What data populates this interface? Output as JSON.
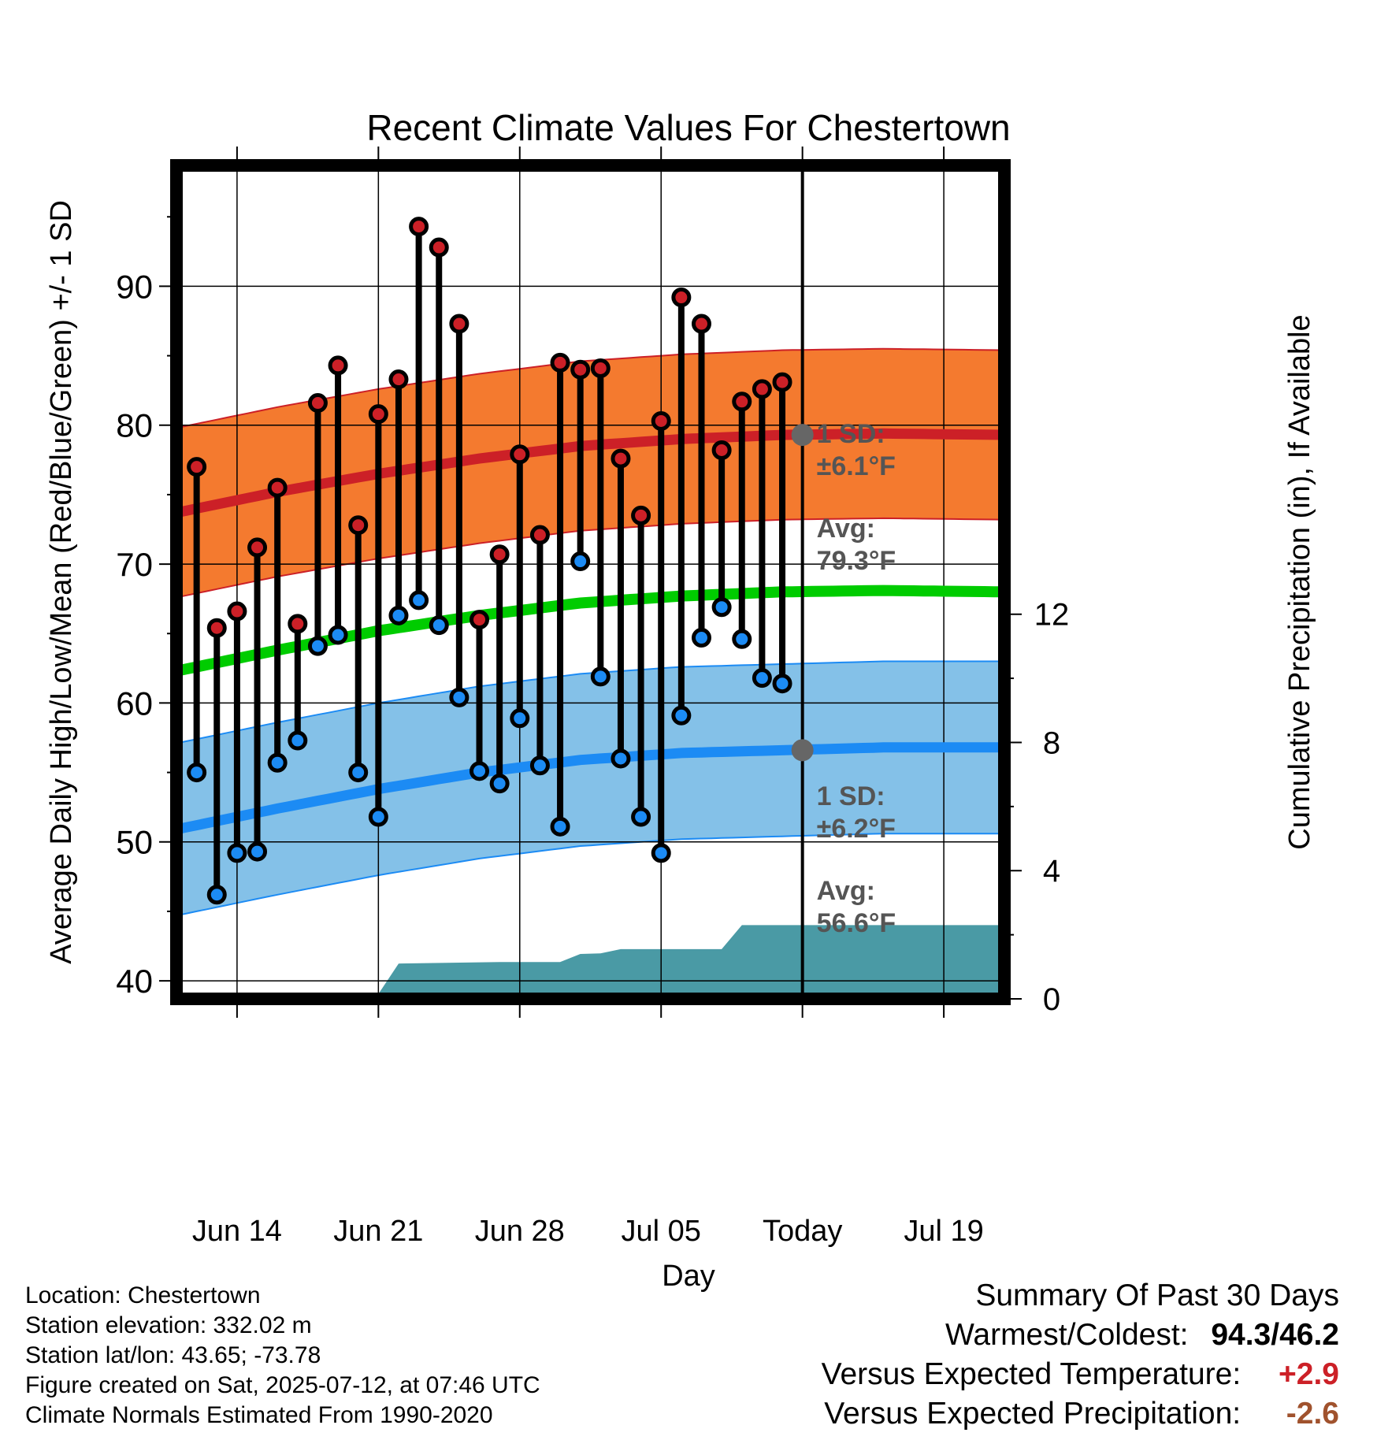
{
  "chart_data": {
    "type": "line",
    "title": "Recent Climate Values For Chestertown",
    "xlabel": "Day",
    "ylabel": "Average Daily High/Low/Mean (Red/Blue/Green) +/- 1 SD",
    "y2label": "Cumulative Precipitation (in), If Available",
    "x_tick_labels": [
      "Jun 14",
      "Jun 21",
      "Jun 28",
      "Jul 05",
      "Today",
      "Jul 19"
    ],
    "x_tick_days": [
      3,
      10,
      17,
      24,
      31,
      38
    ],
    "y_ticks": [
      40,
      50,
      60,
      70,
      80,
      90
    ],
    "y2_ticks": [
      0,
      4,
      8,
      12
    ],
    "today_day": 31,
    "x_range_days": [
      0,
      41
    ],
    "ylim": [
      38.7,
      98.7
    ],
    "y2lim": [
      0,
      26
    ],
    "colors": {
      "high_band": "#f47a2f",
      "high_line": "#cc2027",
      "low_band": "#84c1e8",
      "low_line": "#1c8bf4",
      "mean_line": "#00cc00",
      "precip": "#4a9aa5",
      "annotation": "#555555"
    },
    "normal_curves": {
      "day": [
        0,
        5,
        10,
        15,
        20,
        25,
        30,
        35,
        41
      ],
      "normal_high": [
        73.7,
        75.2,
        76.5,
        77.6,
        78.5,
        79.0,
        79.3,
        79.4,
        79.3
      ],
      "normal_high_sd": 6.1,
      "normal_low": [
        50.9,
        52.4,
        53.8,
        55.0,
        55.9,
        56.4,
        56.6,
        56.8,
        56.8
      ],
      "normal_low_sd": 6.2,
      "normal_mean": [
        62.3,
        63.8,
        65.2,
        66.3,
        67.2,
        67.7,
        68.0,
        68.1,
        68.0
      ]
    },
    "observations": {
      "day": [
        1,
        2,
        3,
        4,
        5,
        6,
        7,
        8,
        9,
        10,
        11,
        12,
        13,
        14,
        15,
        16,
        17,
        18,
        19,
        20,
        21,
        22,
        23,
        24,
        25,
        26,
        27,
        28,
        29,
        30
      ],
      "high": [
        77.0,
        65.4,
        66.6,
        71.2,
        75.5,
        65.7,
        81.6,
        84.3,
        72.8,
        80.8,
        83.3,
        94.3,
        92.8,
        87.3,
        66.0,
        70.7,
        77.9,
        72.1,
        84.5,
        84.0,
        84.1,
        77.6,
        73.5,
        80.3,
        89.2,
        87.3,
        78.2,
        81.7,
        82.6,
        83.1
      ],
      "low": [
        55.0,
        46.2,
        49.2,
        49.3,
        55.7,
        57.3,
        64.1,
        64.9,
        55.0,
        51.8,
        66.3,
        67.4,
        65.6,
        60.4,
        55.1,
        54.2,
        58.9,
        55.5,
        51.1,
        70.2,
        61.9,
        56.0,
        51.8,
        49.2,
        59.1,
        64.7,
        66.9,
        64.6,
        61.8,
        61.4
      ]
    },
    "precipitation": {
      "day": [
        0,
        7.6,
        9.5,
        10,
        11,
        16,
        19,
        20,
        21,
        22,
        23,
        27,
        28,
        29,
        41
      ],
      "cumulative_in": [
        0,
        0,
        0.15,
        0.15,
        1.1,
        1.15,
        1.15,
        1.4,
        1.42,
        1.55,
        1.55,
        1.55,
        2.3,
        2.3,
        2.3
      ]
    },
    "annotations": {
      "high_sd_label": "1 SD:",
      "high_sd_value": "±6.1°F",
      "high_avg_label": "Avg:",
      "high_avg_value": "79.3°F",
      "high_avg": 79.3,
      "low_sd_label": "1 SD:",
      "low_sd_value": "±6.2°F",
      "low_avg_label": "Avg:",
      "low_avg_value": "56.6°F",
      "low_avg": 56.6,
      "days_label": "30",
      "days_label_2": "Days"
    }
  },
  "footer": {
    "location": "Location: Chestertown",
    "elevation": "Station elevation: 332.02 m",
    "latlon": "Station lat/lon: 43.65; -73.78",
    "created": "Figure created on Sat, 2025-07-12, at 07:46 UTC",
    "normals": "Climate Normals Estimated From 1990-2020"
  },
  "summary": {
    "heading": "Summary Of Past 30 Days",
    "warm_cold_label": "Warmest/Coldest:",
    "warm_cold_value": "94.3/46.2",
    "temp_label": "Versus Expected Temperature:",
    "temp_value": "+2.9",
    "temp_color": "#cc2027",
    "precip_label": "Versus Expected Precipitation:",
    "precip_value": "-2.6",
    "precip_color": "#a0522d"
  }
}
